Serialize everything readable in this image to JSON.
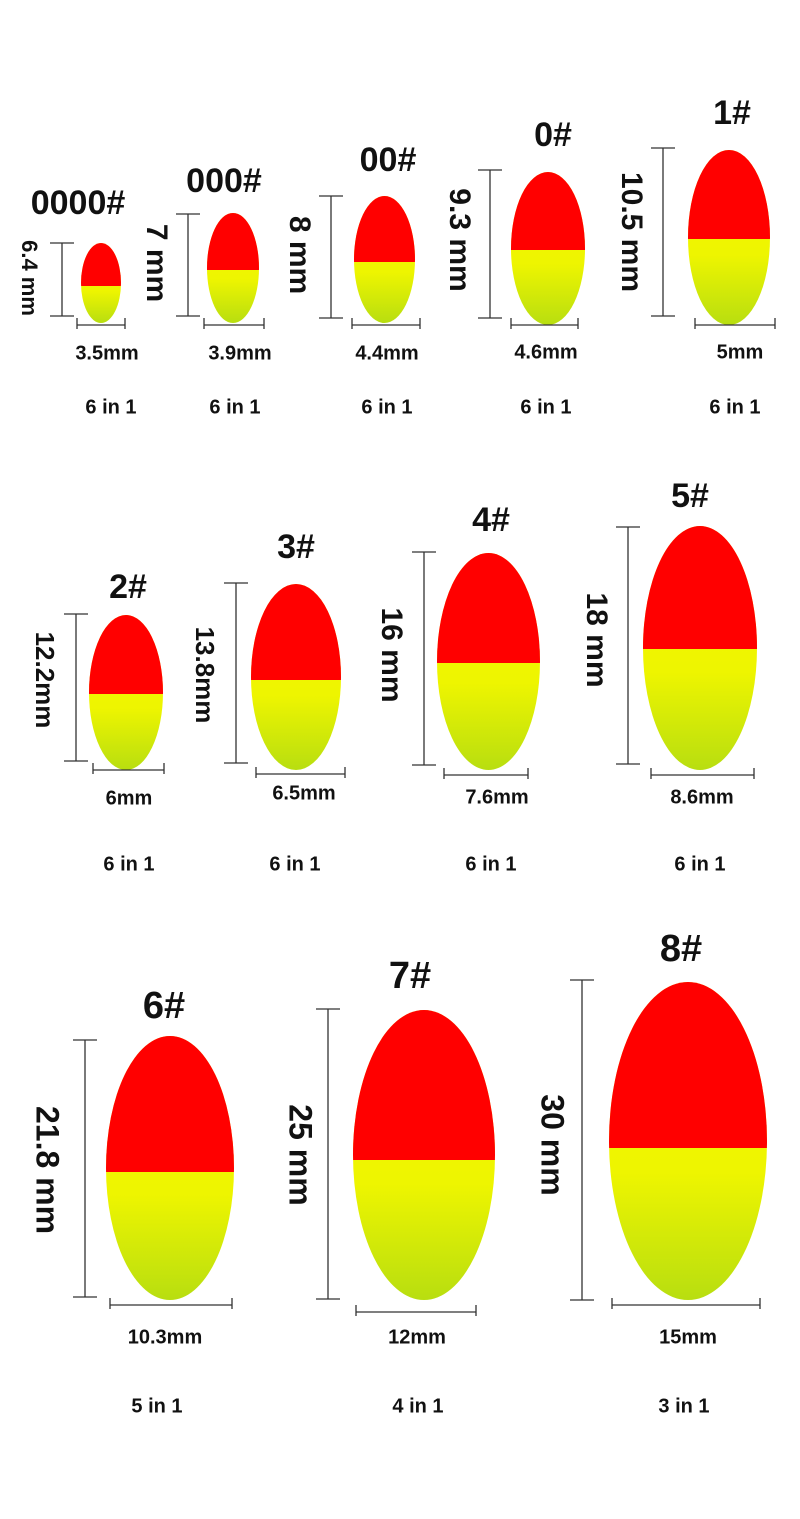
{
  "items": [
    {
      "label": "0000#",
      "height": "6.4 mm",
      "width": "3.5mm",
      "pack": "6 in 1"
    },
    {
      "label": "000#",
      "height": "7 mm",
      "width": "3.9mm",
      "pack": "6 in 1"
    },
    {
      "label": "00#",
      "height": "8 mm",
      "width": "4.4mm",
      "pack": "6 in 1"
    },
    {
      "label": "0#",
      "height": "9.3 mm",
      "width": "4.6mm",
      "pack": "6 in 1"
    },
    {
      "label": "1#",
      "height": "10.5 mm",
      "width": "5mm",
      "pack": "6 in 1"
    },
    {
      "label": "2#",
      "height": "12.2mm",
      "width": "6mm",
      "pack": "6 in 1"
    },
    {
      "label": "3#",
      "height": "13.8mm",
      "width": "6.5mm",
      "pack": "6 in 1"
    },
    {
      "label": "4#",
      "height": "16 mm",
      "width": "7.6mm",
      "pack": "6 in 1"
    },
    {
      "label": "5#",
      "height": "18 mm",
      "width": "8.6mm",
      "pack": "6 in 1"
    },
    {
      "label": "6#",
      "height": "21.8 mm",
      "width": "10.3mm",
      "pack": "5 in 1"
    },
    {
      "label": "7#",
      "height": "25 mm",
      "width": "12mm",
      "pack": "4 in 1"
    },
    {
      "label": "8#",
      "height": "30 mm",
      "width": "15mm",
      "pack": "3 in 1"
    }
  ]
}
